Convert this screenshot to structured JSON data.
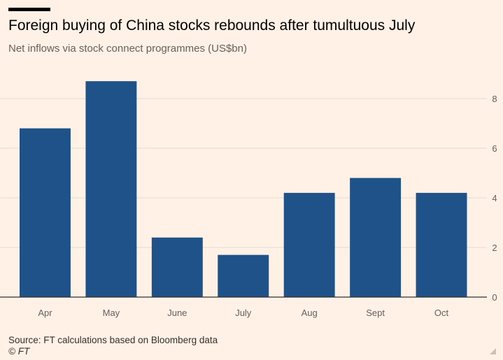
{
  "header": {
    "title": "Foreign buying of China stocks rebounds after tumultuous July",
    "subtitle": "Net inflows via stock connect programmes (US$bn)"
  },
  "footer": {
    "source": "Source: FT calculations based on Bloomberg data",
    "credit": "© FT"
  },
  "colors": {
    "bar": "#1f5288",
    "grid": "#e6d9ce",
    "baseline": "#33302e"
  },
  "chart_data": {
    "type": "bar",
    "categories": [
      "Apr",
      "May",
      "June",
      "July",
      "Aug",
      "Sept",
      "Oct"
    ],
    "values": [
      6.8,
      8.7,
      2.4,
      1.7,
      4.2,
      4.8,
      4.2
    ],
    "title": "Foreign buying of China stocks rebounds after tumultuous July",
    "subtitle": "Net inflows via stock connect programmes (US$bn)",
    "ylim": [
      0,
      8
    ],
    "yticks": [
      0,
      2,
      4,
      6,
      8
    ],
    "y_axis_side": "right",
    "grid": true,
    "legend": "none"
  }
}
